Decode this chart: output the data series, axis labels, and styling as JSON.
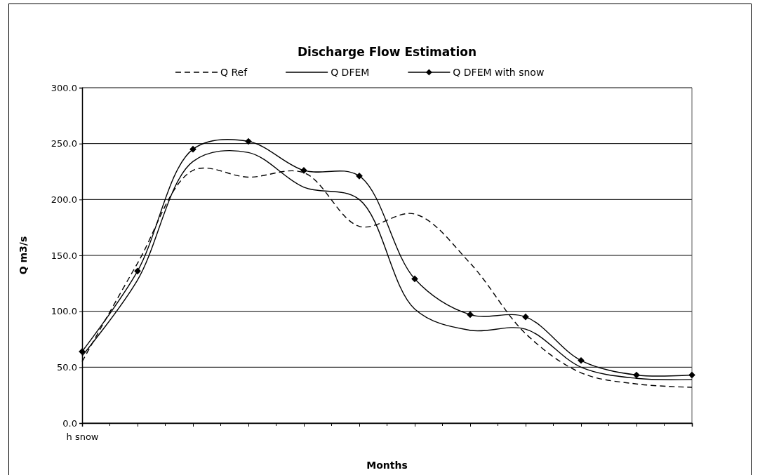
{
  "chart_data": {
    "type": "line",
    "title": "Discharge Flow Estimation",
    "xlabel": "Months",
    "ylabel": "Q m3/s",
    "categories": [
      "h snow",
      null,
      null,
      null,
      null,
      null,
      null,
      null,
      null,
      null,
      null,
      null
    ],
    "series": [
      {
        "name": "Q Ref",
        "color": "#000000",
        "line_style": "dashed",
        "marker": "none",
        "values": [
          55,
          143,
          226,
          220,
          224,
          176,
          187,
          143,
          80,
          45,
          35,
          32
        ]
      },
      {
        "name": "Q DFEM",
        "color": "#000000",
        "line_style": "solid",
        "marker": "none",
        "values": [
          60,
          128,
          234,
          242,
          211,
          200,
          102,
          83,
          84,
          50,
          40,
          39
        ]
      },
      {
        "name": "Q DFEM with snow",
        "color": "#000000",
        "line_style": "solid",
        "marker": "diamond",
        "values": [
          64,
          136,
          245,
          252,
          226,
          221,
          129,
          97,
          95,
          56,
          43,
          43
        ]
      }
    ],
    "ylim": [
      0,
      300
    ],
    "yticks": [
      {
        "value": 0,
        "label": "0.0"
      },
      {
        "value": 50,
        "label": "50.0"
      },
      {
        "value": 100,
        "label": "100.0"
      },
      {
        "value": 150,
        "label": "150.0"
      },
      {
        "value": 200,
        "label": "200.0"
      },
      {
        "value": 250,
        "label": "250.0"
      },
      {
        "value": 300,
        "label": "300.0"
      }
    ],
    "grid": "y",
    "legend": "top"
  }
}
